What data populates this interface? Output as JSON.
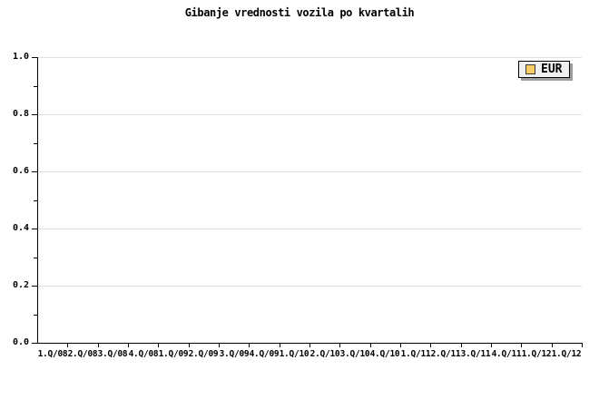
{
  "title": "Gibanje vrednosti vozila po kvartalih",
  "legend": {
    "label": "EUR",
    "swatch_color": "#FACC66"
  },
  "colors": {
    "grid": "#e0e0e0",
    "axis": "#000000",
    "legend_bg": "#efefef",
    "legend_shadow": "#9c9c9c"
  },
  "axes": {
    "y": {
      "tick_labels": [
        "1.0",
        "0.8",
        "0.6",
        "0.4",
        "0.2",
        "0.0"
      ],
      "min": 0.0,
      "max": 1.0,
      "major_step": 0.2,
      "minor_step": 0.1
    },
    "x": {
      "tick_labels": [
        "1.Q/08",
        "2.Q/08",
        "3.Q/08",
        "4.Q/08",
        "1.Q/09",
        "2.Q/09",
        "3.Q/09",
        "4.Q/09",
        "1.Q/10",
        "2.Q/10",
        "3.Q/10",
        "4.Q/10",
        "1.Q/11",
        "2.Q/11",
        "3.Q/11",
        "4.Q/11",
        "1.Q/12",
        "1.Q/12"
      ]
    }
  },
  "chart_data": {
    "type": "line",
    "title": "Gibanje vrednosti vozila po kvartalih",
    "categories": [
      "1.Q/08",
      "2.Q/08",
      "3.Q/08",
      "4.Q/08",
      "1.Q/09",
      "2.Q/09",
      "3.Q/09",
      "4.Q/09",
      "1.Q/10",
      "2.Q/10",
      "3.Q/10",
      "4.Q/10",
      "1.Q/11",
      "2.Q/11",
      "3.Q/11",
      "4.Q/11",
      "1.Q/12",
      "1.Q/12"
    ],
    "series": [
      {
        "name": "EUR",
        "color": "#FACC66",
        "values": []
      }
    ],
    "xlabel": "",
    "ylabel": "",
    "ylim": [
      0.0,
      1.0
    ],
    "yticks": [
      0.0,
      0.2,
      0.4,
      0.6,
      0.8,
      1.0
    ],
    "grid": "horizontal-major-only",
    "legend_position": "top-right"
  }
}
